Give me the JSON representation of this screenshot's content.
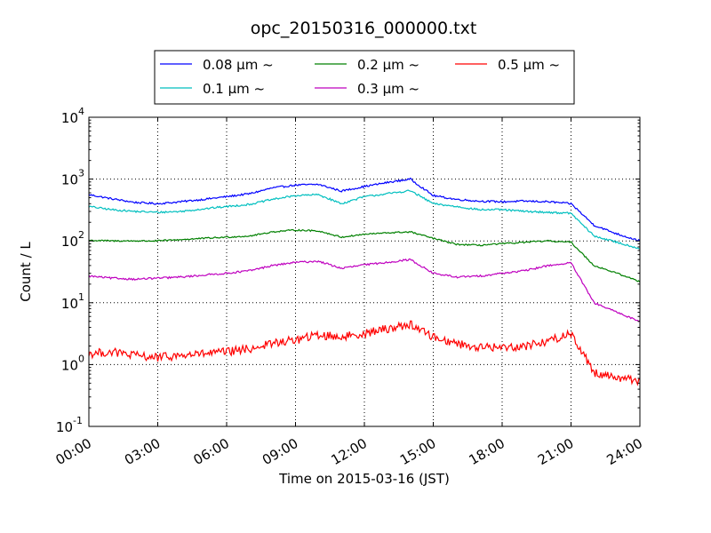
{
  "chart_data": {
    "type": "line",
    "title": "opc_20150316_000000.txt",
    "xlabel": "Time on 2015-03-16 (JST)",
    "ylabel": "Count / L",
    "xlim": [
      0,
      24
    ],
    "ylim": [
      0.1,
      10000
    ],
    "yscale": "log",
    "grid": true,
    "legend_position": "top-center",
    "x_ticks": [
      0,
      3,
      6,
      9,
      12,
      15,
      18,
      21,
      24
    ],
    "x_tick_labels": [
      "00:00",
      "03:00",
      "06:00",
      "09:00",
      "12:00",
      "15:00",
      "18:00",
      "21:00",
      "24:00"
    ],
    "y_ticks": [
      {
        "value": 0.1,
        "base": "10",
        "exp": "-1"
      },
      {
        "value": 1,
        "base": "10",
        "exp": "0"
      },
      {
        "value": 10,
        "base": "10",
        "exp": "1"
      },
      {
        "value": 100,
        "base": "10",
        "exp": "2"
      },
      {
        "value": 1000,
        "base": "10",
        "exp": "3"
      },
      {
        "value": 10000,
        "base": "10",
        "exp": "4"
      }
    ],
    "x": [
      0,
      1,
      2,
      3,
      4,
      5,
      6,
      7,
      8,
      9,
      10,
      11,
      12,
      13,
      14,
      15,
      16,
      17,
      18,
      19,
      20,
      21,
      22,
      23,
      24
    ],
    "series": [
      {
        "name": "0.08 μm ~",
        "color": "#0000ff",
        "noise": 0.015,
        "values": [
          560,
          480,
          420,
          400,
          430,
          470,
          520,
          580,
          720,
          800,
          820,
          640,
          760,
          880,
          1000,
          540,
          470,
          440,
          430,
          440,
          430,
          400,
          180,
          130,
          100
        ]
      },
      {
        "name": "0.1 μm ~",
        "color": "#00bfbf",
        "noise": 0.015,
        "values": [
          360,
          320,
          300,
          290,
          300,
          330,
          360,
          390,
          470,
          540,
          560,
          400,
          520,
          580,
          650,
          400,
          360,
          320,
          320,
          300,
          290,
          280,
          120,
          95,
          75
        ]
      },
      {
        "name": "0.2 μm ~",
        "color": "#008000",
        "noise": 0.012,
        "values": [
          102,
          100,
          100,
          100,
          105,
          110,
          115,
          120,
          140,
          150,
          145,
          115,
          128,
          135,
          140,
          110,
          88,
          85,
          90,
          95,
          100,
          95,
          40,
          30,
          22
        ]
      },
      {
        "name": "0.3 μm ~",
        "color": "#bf00bf",
        "noise": 0.015,
        "values": [
          27,
          25,
          24,
          25,
          26,
          28,
          30,
          33,
          40,
          45,
          47,
          36,
          41,
          45,
          50,
          30,
          26,
          27,
          30,
          33,
          40,
          44,
          10,
          7,
          5
        ]
      },
      {
        "name": "0.5 μm ~",
        "color": "#ff0000",
        "noise": 0.07,
        "values": [
          1.5,
          1.6,
          1.4,
          1.3,
          1.4,
          1.5,
          1.6,
          1.8,
          2.2,
          2.5,
          3.0,
          2.8,
          3.2,
          3.8,
          4.5,
          2.8,
          2.2,
          1.9,
          1.9,
          2.0,
          2.4,
          3.2,
          0.75,
          0.62,
          0.55
        ]
      }
    ]
  }
}
